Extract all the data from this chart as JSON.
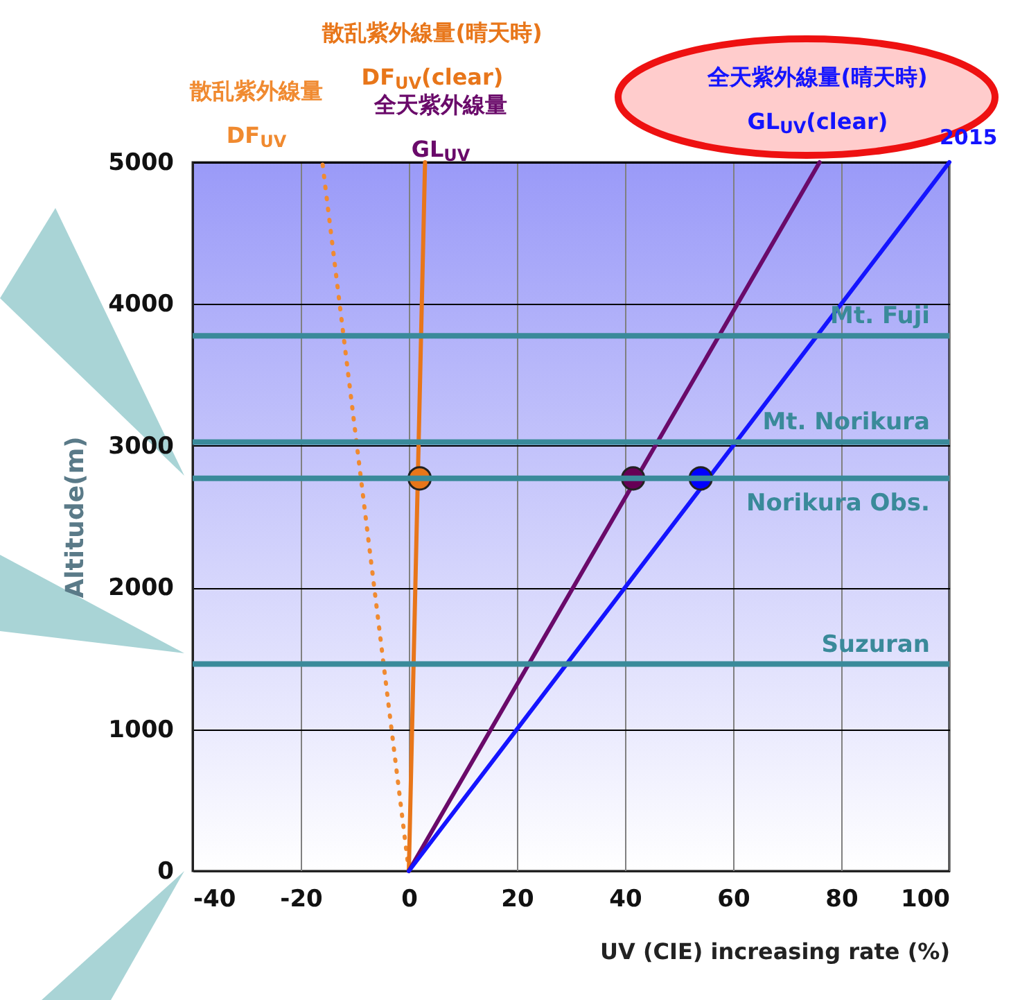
{
  "chart_data": {
    "type": "line",
    "xlabel": "UV (CIE) increasing rate (%)",
    "ylabel": "Altitude(m)",
    "xlim": [
      -40,
      100
    ],
    "ylim": [
      0,
      5000
    ],
    "xticks": [
      -40,
      -20,
      0,
      20,
      40,
      60,
      80,
      100
    ],
    "yticks": [
      0,
      1000,
      2000,
      3000,
      4000,
      5000
    ],
    "grid": true,
    "marker": "none",
    "series": [
      {
        "name": "散乱紫外線量 DF$_{UV}$",
        "color": "#f08a30",
        "line_style": "dotted",
        "x": [
          0,
          -16
        ],
        "values": [
          0,
          5000
        ]
      },
      {
        "name": "散乱紫外線量(晴天時) DF$_{UV}$(clear)",
        "color": "#e8761a",
        "line_style": "solid",
        "x": [
          0,
          3
        ],
        "values": [
          0,
          5000
        ]
      },
      {
        "name": "全天紫外線量 GL$_{UV}$",
        "color": "#6a0a6a",
        "line_style": "solid",
        "x": [
          0,
          76
        ],
        "values": [
          0,
          5000
        ]
      },
      {
        "name": "全天紫外線量(晴天時) GL$_{UV}$(clear)",
        "color": "#1414ff",
        "line_style": "solid",
        "x": [
          0,
          100
        ],
        "values": [
          0,
          5000
        ]
      },
      {
        "type": "scatter",
        "marker": "circle",
        "x": [
          2,
          41.5,
          54
        ],
        "values": [
          2770,
          2770,
          2770
        ],
        "colors": [
          "#e8761a",
          "#660055",
          "#0000ff"
        ]
      }
    ],
    "ref_lines": [
      {
        "axis": "y",
        "value": 3776,
        "label": "Mt. Fuji",
        "color": "#3a8a9a"
      },
      {
        "axis": "y",
        "value": 3026,
        "label": "Mt. Norikura",
        "color": "#3a8a9a"
      },
      {
        "axis": "y",
        "value": 2770,
        "label": "Norikura Obs.",
        "color": "#3a8a9a"
      },
      {
        "axis": "y",
        "value": 1460,
        "label": "Suzuran",
        "color": "#3a8a9a"
      }
    ],
    "annotations": [
      "2015"
    ]
  }
}
